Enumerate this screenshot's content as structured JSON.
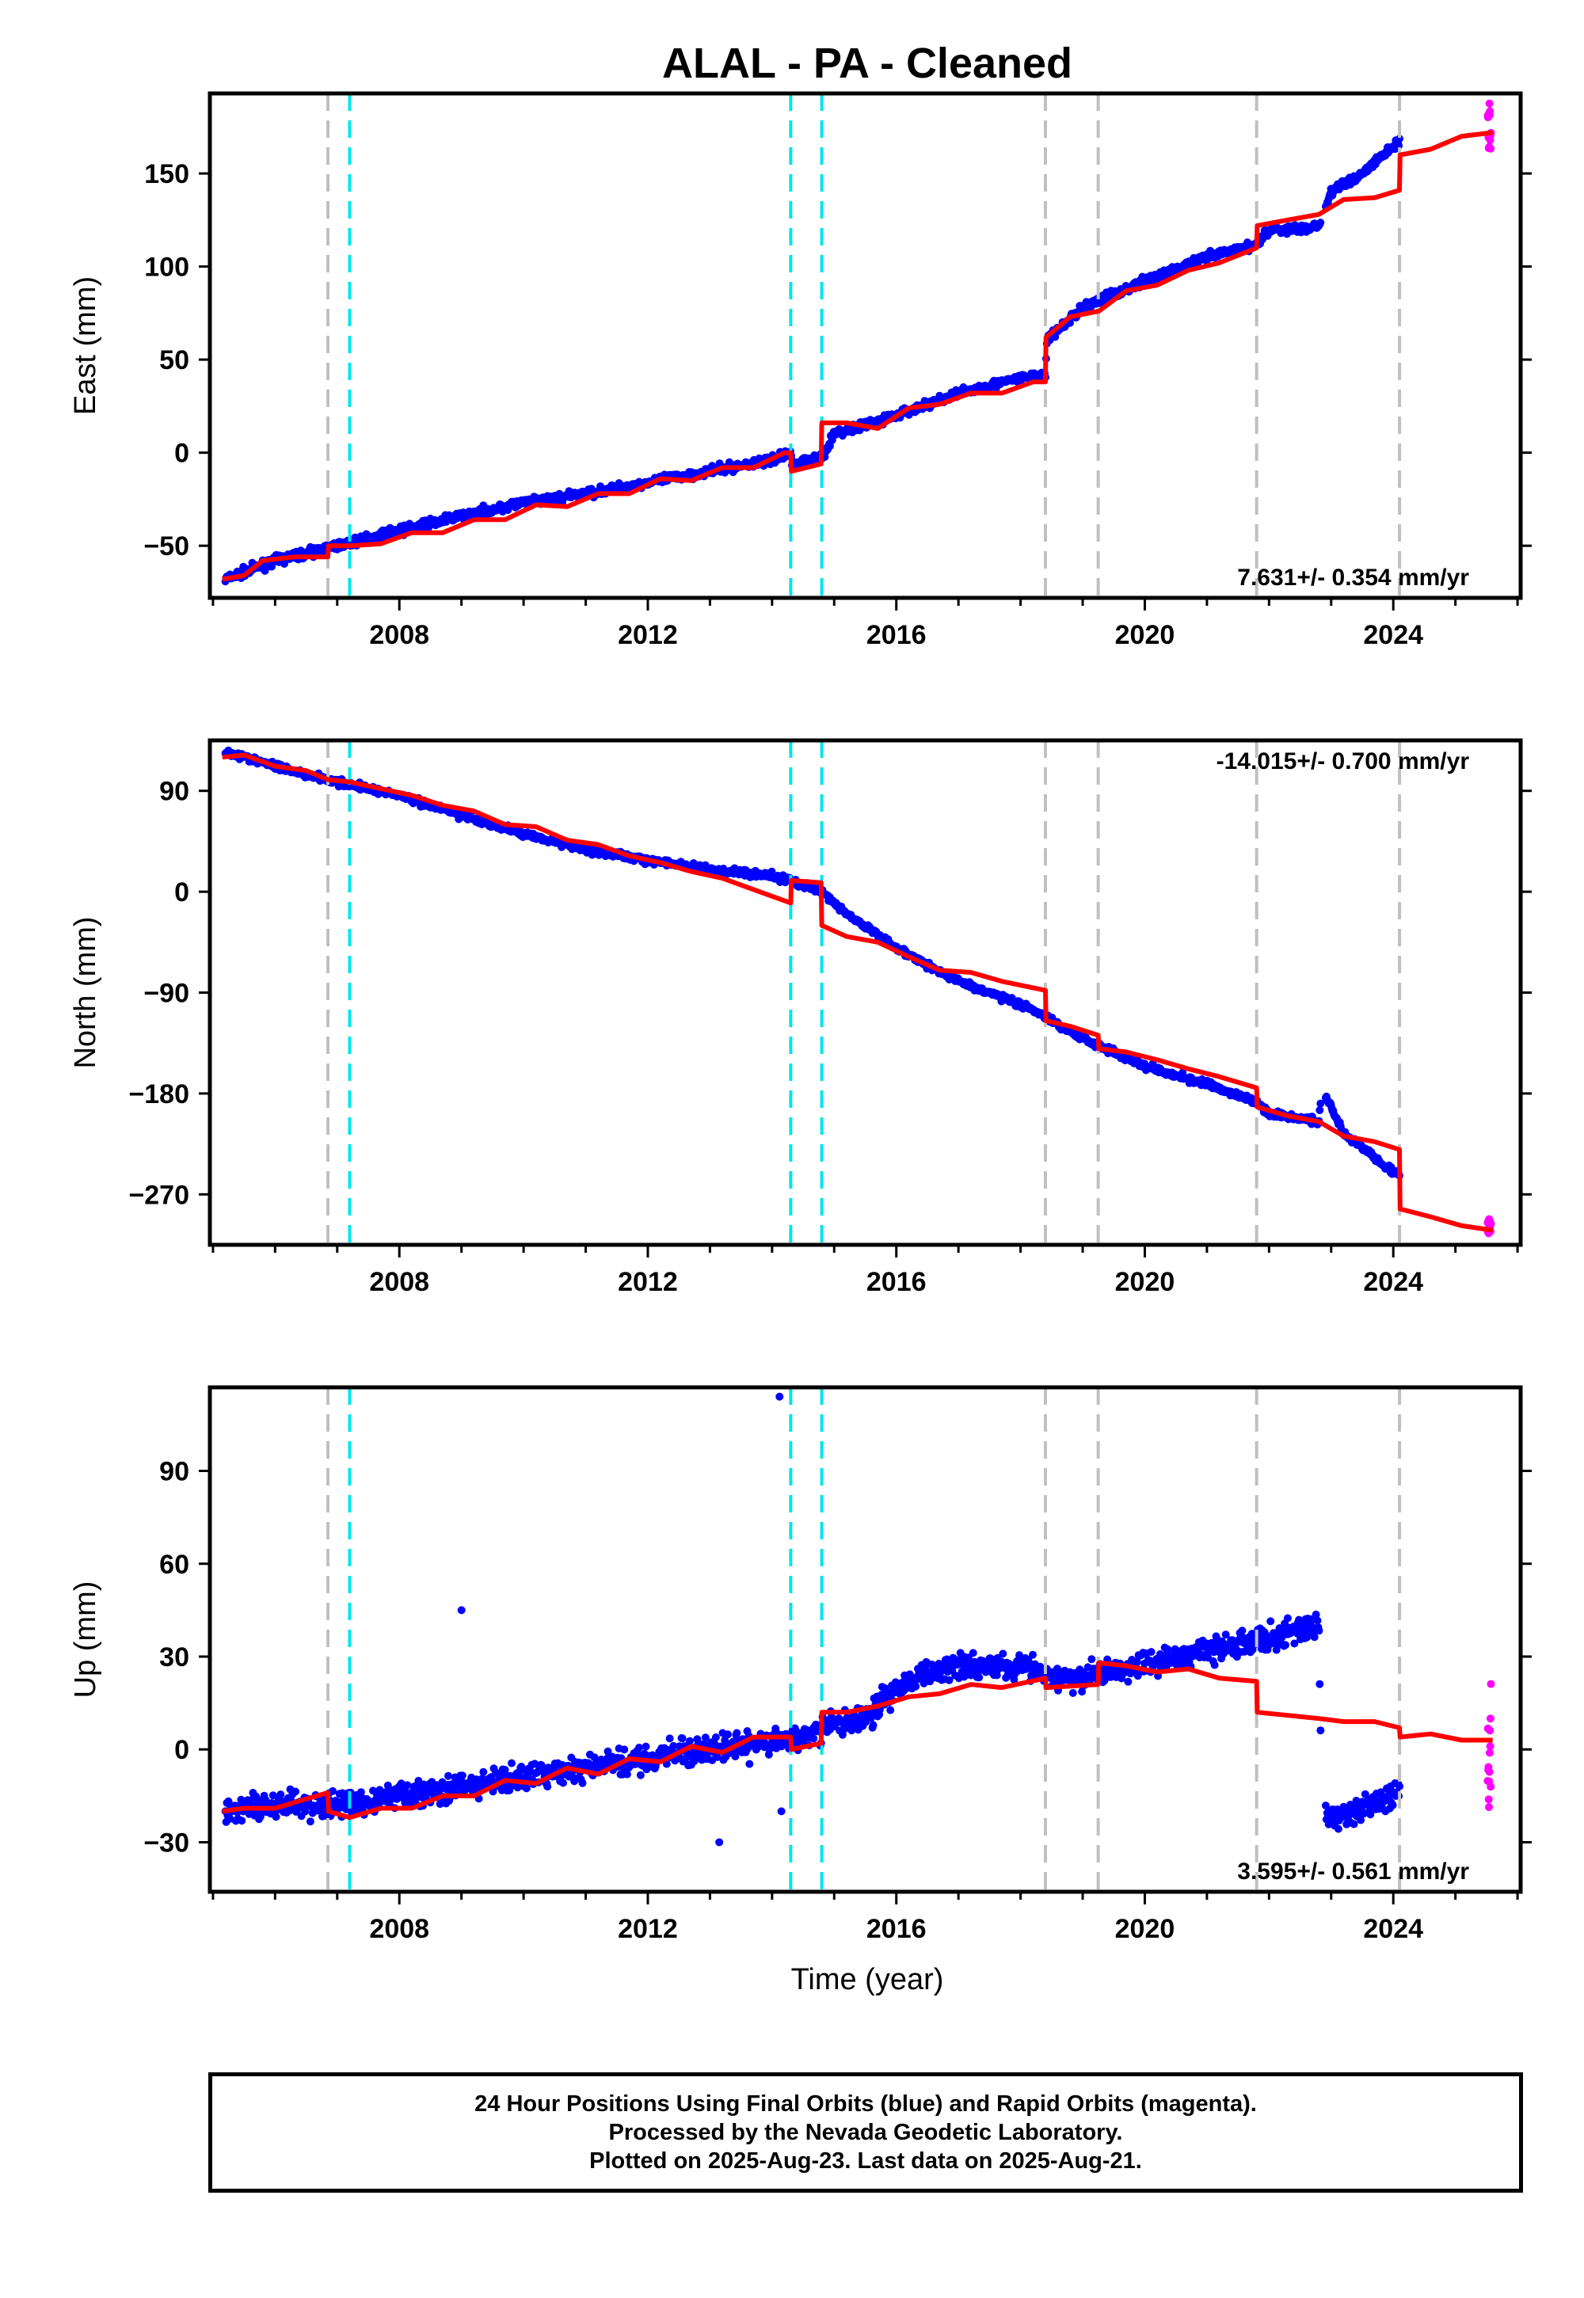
{
  "title": "ALAL  - PA - Cleaned",
  "xlabel": "Time (year)",
  "colors": {
    "final_orbits": "#0000ff",
    "rapid_orbits": "#ff00ff",
    "model_fit": "#ff0000",
    "equipment_change": "#c0c0c0",
    "earthquake": "#00e5ee"
  },
  "footer": {
    "line1": "24 Hour Positions Using Final Orbits (blue) and Rapid Orbits (magenta).",
    "line2": "Processed by the Nevada Geodetic Laboratory.",
    "line3": "Plotted on 2025-Aug-23. Last data on 2025-Aug-21."
  },
  "chart_data": [
    {
      "type": "scatter",
      "ylabel": "East (mm)",
      "rate_label": "7.631+/- 0.354 mm/yr",
      "xlim": [
        2004.95,
        2026.05
      ],
      "ylim": [
        -78,
        193
      ],
      "xticks": [
        2008,
        2012,
        2016,
        2020,
        2024
      ],
      "yticks": [
        -50,
        0,
        50,
        100,
        150
      ],
      "equipment_change_lines": [
        2006.85,
        2018.4,
        2019.25,
        2021.8,
        2024.1
      ],
      "earthquake_lines": [
        2007.2,
        2014.3,
        2014.8
      ],
      "final_trend": [
        [
          2005.2,
          -68
        ],
        [
          2006,
          -58
        ],
        [
          2007,
          -50
        ],
        [
          2008,
          -42
        ],
        [
          2009,
          -34
        ],
        [
          2010,
          -27
        ],
        [
          2011,
          -22
        ],
        [
          2012,
          -16
        ],
        [
          2013,
          -10
        ],
        [
          2014,
          -4
        ],
        [
          2014.3,
          0
        ],
        [
          2014.32,
          -6
        ],
        [
          2014.8,
          -2
        ],
        [
          2015,
          10
        ],
        [
          2016,
          20
        ],
        [
          2017,
          32
        ],
        [
          2018,
          40
        ],
        [
          2018.4,
          42
        ],
        [
          2018.42,
          60
        ],
        [
          2019,
          78
        ],
        [
          2019.25,
          82
        ],
        [
          2020,
          92
        ],
        [
          2021,
          105
        ],
        [
          2021.8,
          112
        ],
        [
          2022,
          120
        ],
        [
          2022.5,
          120
        ],
        [
          2022.8,
          122
        ],
        [
          2023,
          140
        ],
        [
          2023.5,
          150
        ],
        [
          2024,
          165
        ],
        [
          2024.1,
          167
        ]
      ],
      "rapid_y": [
        158,
        188
      ],
      "model": [
        [
          2005.15,
          -68
        ],
        [
          2005.5,
          -66
        ],
        [
          2005.8,
          -58
        ],
        [
          2006.3,
          -56
        ],
        [
          2006.85,
          -56
        ],
        [
          2006.86,
          -50
        ],
        [
          2007.2,
          -50
        ],
        [
          2007.21,
          -50
        ],
        [
          2007.7,
          -49
        ],
        [
          2008.2,
          -43
        ],
        [
          2008.7,
          -43
        ],
        [
          2009.2,
          -36
        ],
        [
          2009.7,
          -36
        ],
        [
          2010.2,
          -28
        ],
        [
          2010.7,
          -29
        ],
        [
          2011.2,
          -22
        ],
        [
          2011.7,
          -22
        ],
        [
          2012.2,
          -14
        ],
        [
          2012.7,
          -15
        ],
        [
          2013.2,
          -8
        ],
        [
          2013.7,
          -8
        ],
        [
          2014.2,
          0
        ],
        [
          2014.3,
          0
        ],
        [
          2014.31,
          -10
        ],
        [
          2014.79,
          -6
        ],
        [
          2014.8,
          16
        ],
        [
          2015.2,
          16
        ],
        [
          2015.7,
          13
        ],
        [
          2016.2,
          24
        ],
        [
          2016.7,
          26
        ],
        [
          2017.2,
          32
        ],
        [
          2017.7,
          32
        ],
        [
          2018.2,
          38
        ],
        [
          2018.4,
          38
        ],
        [
          2018.41,
          62
        ],
        [
          2018.8,
          73
        ],
        [
          2019.25,
          76
        ],
        [
          2019.26,
          76
        ],
        [
          2019.7,
          87
        ],
        [
          2020.2,
          90
        ],
        [
          2020.7,
          98
        ],
        [
          2021.2,
          102
        ],
        [
          2021.8,
          110
        ],
        [
          2021.81,
          122
        ],
        [
          2022.3,
          125
        ],
        [
          2022.8,
          128
        ],
        [
          2023.2,
          136
        ],
        [
          2023.7,
          137
        ],
        [
          2024.1,
          141
        ],
        [
          2024.11,
          160
        ],
        [
          2024.6,
          163
        ],
        [
          2025.1,
          170
        ],
        [
          2025.6,
          172
        ]
      ]
    },
    {
      "type": "scatter",
      "ylabel": "North (mm)",
      "rate_label": "-14.015+/- 0.700 mm/yr",
      "xlim": [
        2004.95,
        2026.05
      ],
      "ylim": [
        -315,
        135
      ],
      "xticks": [
        2008,
        2012,
        2016,
        2020,
        2024
      ],
      "yticks": [
        90,
        0,
        -90,
        -180,
        -270
      ],
      "equipment_change_lines": [
        2006.85,
        2018.4,
        2019.25,
        2021.8,
        2024.1
      ],
      "earthquake_lines": [
        2007.2,
        2014.3,
        2014.8
      ],
      "final_trend": [
        [
          2005.2,
          125
        ],
        [
          2006,
          112
        ],
        [
          2007,
          98
        ],
        [
          2008,
          86
        ],
        [
          2009,
          68
        ],
        [
          2010,
          52
        ],
        [
          2011,
          38
        ],
        [
          2012,
          28
        ],
        [
          2013,
          20
        ],
        [
          2014,
          14
        ],
        [
          2014.3,
          10
        ],
        [
          2014.8,
          0
        ],
        [
          2015.2,
          -20
        ],
        [
          2016,
          -50
        ],
        [
          2017,
          -80
        ],
        [
          2018,
          -100
        ],
        [
          2018.4,
          -112
        ],
        [
          2019,
          -130
        ],
        [
          2019.25,
          -137
        ],
        [
          2020,
          -155
        ],
        [
          2021,
          -172
        ],
        [
          2021.8,
          -188
        ],
        [
          2022,
          -198
        ],
        [
          2022.8,
          -205
        ],
        [
          2022.85,
          -175
        ],
        [
          2023.2,
          -215
        ],
        [
          2024,
          -250
        ],
        [
          2024.1,
          -253
        ]
      ],
      "rapid_y": [
        -305,
        -292
      ],
      "model": [
        [
          2005.15,
          120
        ],
        [
          2005.5,
          122
        ],
        [
          2006,
          112
        ],
        [
          2006.5,
          108
        ],
        [
          2006.85,
          100
        ],
        [
          2007.2,
          98
        ],
        [
          2007.7,
          92
        ],
        [
          2008.2,
          86
        ],
        [
          2008.7,
          77
        ],
        [
          2009.2,
          72
        ],
        [
          2009.7,
          60
        ],
        [
          2010.2,
          58
        ],
        [
          2010.7,
          46
        ],
        [
          2011.2,
          42
        ],
        [
          2011.7,
          32
        ],
        [
          2012.2,
          26
        ],
        [
          2012.7,
          18
        ],
        [
          2013.2,
          12
        ],
        [
          2013.7,
          2
        ],
        [
          2014.3,
          -10
        ],
        [
          2014.31,
          10
        ],
        [
          2014.79,
          8
        ],
        [
          2014.8,
          -30
        ],
        [
          2015.2,
          -40
        ],
        [
          2015.7,
          -45
        ],
        [
          2016.2,
          -58
        ],
        [
          2016.7,
          -70
        ],
        [
          2017.2,
          -72
        ],
        [
          2017.7,
          -80
        ],
        [
          2018.4,
          -88
        ],
        [
          2018.41,
          -115
        ],
        [
          2018.8,
          -120
        ],
        [
          2019.25,
          -128
        ],
        [
          2019.26,
          -140
        ],
        [
          2019.7,
          -143
        ],
        [
          2020.2,
          -150
        ],
        [
          2020.7,
          -158
        ],
        [
          2021.2,
          -165
        ],
        [
          2021.8,
          -175
        ],
        [
          2021.81,
          -192
        ],
        [
          2022.3,
          -200
        ],
        [
          2022.8,
          -205
        ],
        [
          2023.2,
          -218
        ],
        [
          2023.7,
          -223
        ],
        [
          2024.1,
          -230
        ],
        [
          2024.11,
          -283
        ],
        [
          2024.6,
          -290
        ],
        [
          2025.1,
          -298
        ],
        [
          2025.6,
          -302
        ]
      ]
    },
    {
      "type": "scatter",
      "ylabel": "Up (mm)",
      "rate_label": "3.595+/- 0.561 mm/yr",
      "xlim": [
        2004.95,
        2026.05
      ],
      "ylim": [
        -46,
        117
      ],
      "xticks": [
        2008,
        2012,
        2016,
        2020,
        2024
      ],
      "yticks": [
        90,
        60,
        30,
        0,
        -30
      ],
      "equipment_change_lines": [
        2006.85,
        2018.4,
        2019.25,
        2021.8,
        2024.1
      ],
      "earthquake_lines": [
        2007.2,
        2014.3,
        2014.8
      ],
      "final_trend": [
        [
          2005.2,
          -20
        ],
        [
          2006,
          -18
        ],
        [
          2007,
          -18
        ],
        [
          2008,
          -15
        ],
        [
          2009,
          -12
        ],
        [
          2010,
          -9
        ],
        [
          2011,
          -6
        ],
        [
          2012,
          -3
        ],
        [
          2013,
          0
        ],
        [
          2014,
          2
        ],
        [
          2014.8,
          6
        ],
        [
          2015,
          8
        ],
        [
          2015.5,
          10
        ],
        [
          2016,
          20
        ],
        [
          2017,
          28
        ],
        [
          2018,
          27
        ],
        [
          2018.4,
          24
        ],
        [
          2019,
          22
        ],
        [
          2019.25,
          25
        ],
        [
          2020,
          28
        ],
        [
          2021,
          32
        ],
        [
          2021.8,
          35
        ],
        [
          2022.8,
          40
        ],
        [
          2022.85,
          -20
        ],
        [
          2023.2,
          -22
        ],
        [
          2024,
          -15
        ],
        [
          2024.1,
          -12
        ]
      ],
      "outliers": [
        [
          2009,
          45
        ],
        [
          2014.12,
          114
        ],
        [
          2013.15,
          -30
        ],
        [
          2014.15,
          -20
        ]
      ],
      "rapid_y": [
        -20,
        25
      ],
      "model": [
        [
          2005.15,
          -20
        ],
        [
          2005.5,
          -19
        ],
        [
          2006,
          -19
        ],
        [
          2006.5,
          -16
        ],
        [
          2006.85,
          -14
        ],
        [
          2006.86,
          -20
        ],
        [
          2007.2,
          -22
        ],
        [
          2007.7,
          -19
        ],
        [
          2008.2,
          -19
        ],
        [
          2008.7,
          -15
        ],
        [
          2009.2,
          -15
        ],
        [
          2009.7,
          -10
        ],
        [
          2010.2,
          -11
        ],
        [
          2010.7,
          -6
        ],
        [
          2011.2,
          -8
        ],
        [
          2011.7,
          -3
        ],
        [
          2012.2,
          -4
        ],
        [
          2012.7,
          1
        ],
        [
          2013.2,
          -1
        ],
        [
          2013.7,
          4
        ],
        [
          2014.3,
          4
        ],
        [
          2014.31,
          0
        ],
        [
          2014.79,
          2
        ],
        [
          2014.8,
          12
        ],
        [
          2015.2,
          12
        ],
        [
          2015.7,
          14
        ],
        [
          2016.2,
          17
        ],
        [
          2016.7,
          18
        ],
        [
          2017.2,
          21
        ],
        [
          2017.7,
          20
        ],
        [
          2018.4,
          23
        ],
        [
          2018.41,
          20
        ],
        [
          2019.25,
          21
        ],
        [
          2019.26,
          28
        ],
        [
          2019.7,
          27
        ],
        [
          2020.2,
          25
        ],
        [
          2020.7,
          26
        ],
        [
          2021.2,
          23
        ],
        [
          2021.8,
          22
        ],
        [
          2021.81,
          12
        ],
        [
          2022.3,
          11
        ],
        [
          2022.8,
          10
        ],
        [
          2023.2,
          9
        ],
        [
          2023.7,
          9
        ],
        [
          2024.1,
          7
        ],
        [
          2024.11,
          4
        ],
        [
          2024.6,
          5
        ],
        [
          2025.1,
          3
        ],
        [
          2025.6,
          3
        ]
      ]
    }
  ]
}
